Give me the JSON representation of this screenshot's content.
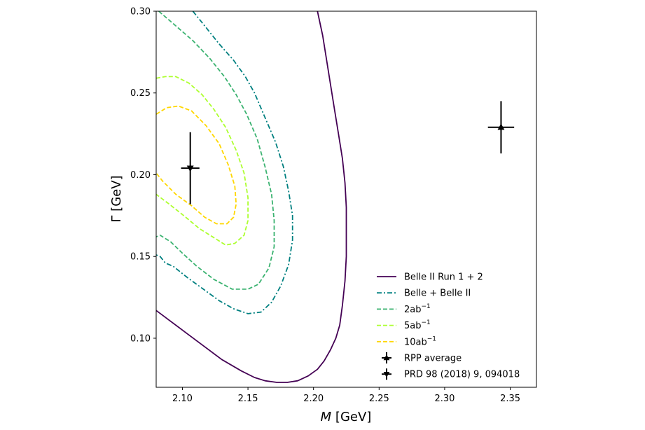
{
  "chart_data": {
    "type": "line",
    "xlabel_italic": "M",
    "xlabel_unit": " [GeV]",
    "ylabel": "Γ [GeV]",
    "xlim": [
      2.08,
      2.37
    ],
    "ylim": [
      0.07,
      0.3
    ],
    "xticks": [
      2.1,
      2.15,
      2.2,
      2.25,
      2.3,
      2.35
    ],
    "xtick_labels": [
      "2.10",
      "2.15",
      "2.20",
      "2.25",
      "2.30",
      "2.35"
    ],
    "yticks": [
      0.1,
      0.15,
      0.2,
      0.25,
      0.3
    ],
    "ytick_labels": [
      "0.10",
      "0.15",
      "0.20",
      "0.25",
      "0.30"
    ],
    "legend_position": "lower-right",
    "series": [
      {
        "name": "Belle II Run 1 + 2",
        "legend_parts": [
          "Belle II Run 1 + 2"
        ],
        "color": "#440154",
        "style": "solid",
        "x": [
          2.203,
          2.207,
          2.21,
          2.213,
          2.216,
          2.219,
          2.222,
          2.224,
          2.225,
          2.225,
          2.225,
          2.224,
          2.222,
          2.22,
          2.217,
          2.213,
          2.208,
          2.203,
          2.196,
          2.188,
          2.18,
          2.172,
          2.163,
          2.155,
          2.145,
          2.13,
          2.115,
          2.1,
          2.09,
          2.08
        ],
        "y": [
          0.3,
          0.285,
          0.27,
          0.255,
          0.24,
          0.225,
          0.21,
          0.195,
          0.18,
          0.165,
          0.15,
          0.135,
          0.12,
          0.108,
          0.1,
          0.093,
          0.086,
          0.081,
          0.077,
          0.074,
          0.073,
          0.073,
          0.074,
          0.076,
          0.08,
          0.087,
          0.096,
          0.105,
          0.111,
          0.117
        ]
      },
      {
        "name": "Belle + Belle II",
        "legend_parts": [
          "Belle + Belle II"
        ],
        "color": "#008080",
        "style": "dashdot",
        "x": [
          2.108,
          2.118,
          2.128,
          2.139,
          2.148,
          2.155,
          2.163,
          2.171,
          2.177,
          2.181,
          2.184,
          2.184,
          2.181,
          2.175,
          2.168,
          2.16,
          2.15,
          2.139,
          2.128,
          2.116,
          2.104,
          2.093,
          2.087,
          2.083,
          2.08
        ],
        "y": [
          0.3,
          0.29,
          0.28,
          0.27,
          0.26,
          0.25,
          0.235,
          0.22,
          0.205,
          0.19,
          0.175,
          0.16,
          0.145,
          0.132,
          0.122,
          0.116,
          0.115,
          0.118,
          0.123,
          0.13,
          0.137,
          0.144,
          0.146,
          0.15,
          0.151
        ]
      },
      {
        "name": "2ab⁻¹",
        "legend_parts": [
          "2ab",
          "−1"
        ],
        "color": "#3CB371",
        "style": "dashed",
        "x": [
          2.082,
          2.095,
          2.108,
          2.121,
          2.132,
          2.141,
          2.149,
          2.157,
          2.163,
          2.168,
          2.17,
          2.17,
          2.166,
          2.158,
          2.15,
          2.138,
          2.124,
          2.111,
          2.1,
          2.091,
          2.083,
          2.08
        ],
        "y": [
          0.3,
          0.291,
          0.282,
          0.271,
          0.26,
          0.249,
          0.237,
          0.222,
          0.205,
          0.188,
          0.172,
          0.156,
          0.143,
          0.133,
          0.13,
          0.13,
          0.136,
          0.144,
          0.152,
          0.159,
          0.163,
          0.162
        ]
      },
      {
        "name": "5ab⁻¹",
        "legend_parts": [
          "5ab",
          "−1"
        ],
        "color": "#ADFF2F",
        "style": "dashed",
        "x": [
          2.08,
          2.087,
          2.095,
          2.105,
          2.115,
          2.124,
          2.133,
          2.141,
          2.147,
          2.15,
          2.15,
          2.147,
          2.14,
          2.133,
          2.125,
          2.113,
          2.101,
          2.09,
          2.08
        ],
        "y": [
          0.259,
          0.26,
          0.26,
          0.256,
          0.249,
          0.24,
          0.229,
          0.215,
          0.201,
          0.186,
          0.172,
          0.163,
          0.158,
          0.157,
          0.161,
          0.167,
          0.175,
          0.182,
          0.188
        ]
      },
      {
        "name": "10ab⁻¹",
        "legend_parts": [
          "10ab",
          "−1"
        ],
        "color": "#FFD700",
        "style": "dashed",
        "x": [
          2.08,
          2.088,
          2.097,
          2.107,
          2.118,
          2.128,
          2.135,
          2.14,
          2.141,
          2.139,
          2.134,
          2.126,
          2.117,
          2.107,
          2.095,
          2.085,
          2.08
        ],
        "y": [
          0.237,
          0.241,
          0.242,
          0.239,
          0.23,
          0.219,
          0.206,
          0.193,
          0.182,
          0.174,
          0.17,
          0.17,
          0.174,
          0.181,
          0.188,
          0.196,
          0.201
        ]
      }
    ],
    "points": [
      {
        "name": "RPP average",
        "legend_parts": [
          "RPP average"
        ],
        "marker": "triangle-up",
        "color": "#000000",
        "x": 2.343,
        "y": 0.229,
        "xerr": 0.01,
        "yerr": 0.016
      },
      {
        "name": "PRD 98 (2018) 9, 094018",
        "legend_parts": [
          "PRD 98 (2018) 9, 094018"
        ],
        "marker": "triangle-down",
        "color": "#000000",
        "x": 2.106,
        "y": 0.204,
        "xerr": 0.007,
        "yerr": 0.022
      }
    ]
  }
}
